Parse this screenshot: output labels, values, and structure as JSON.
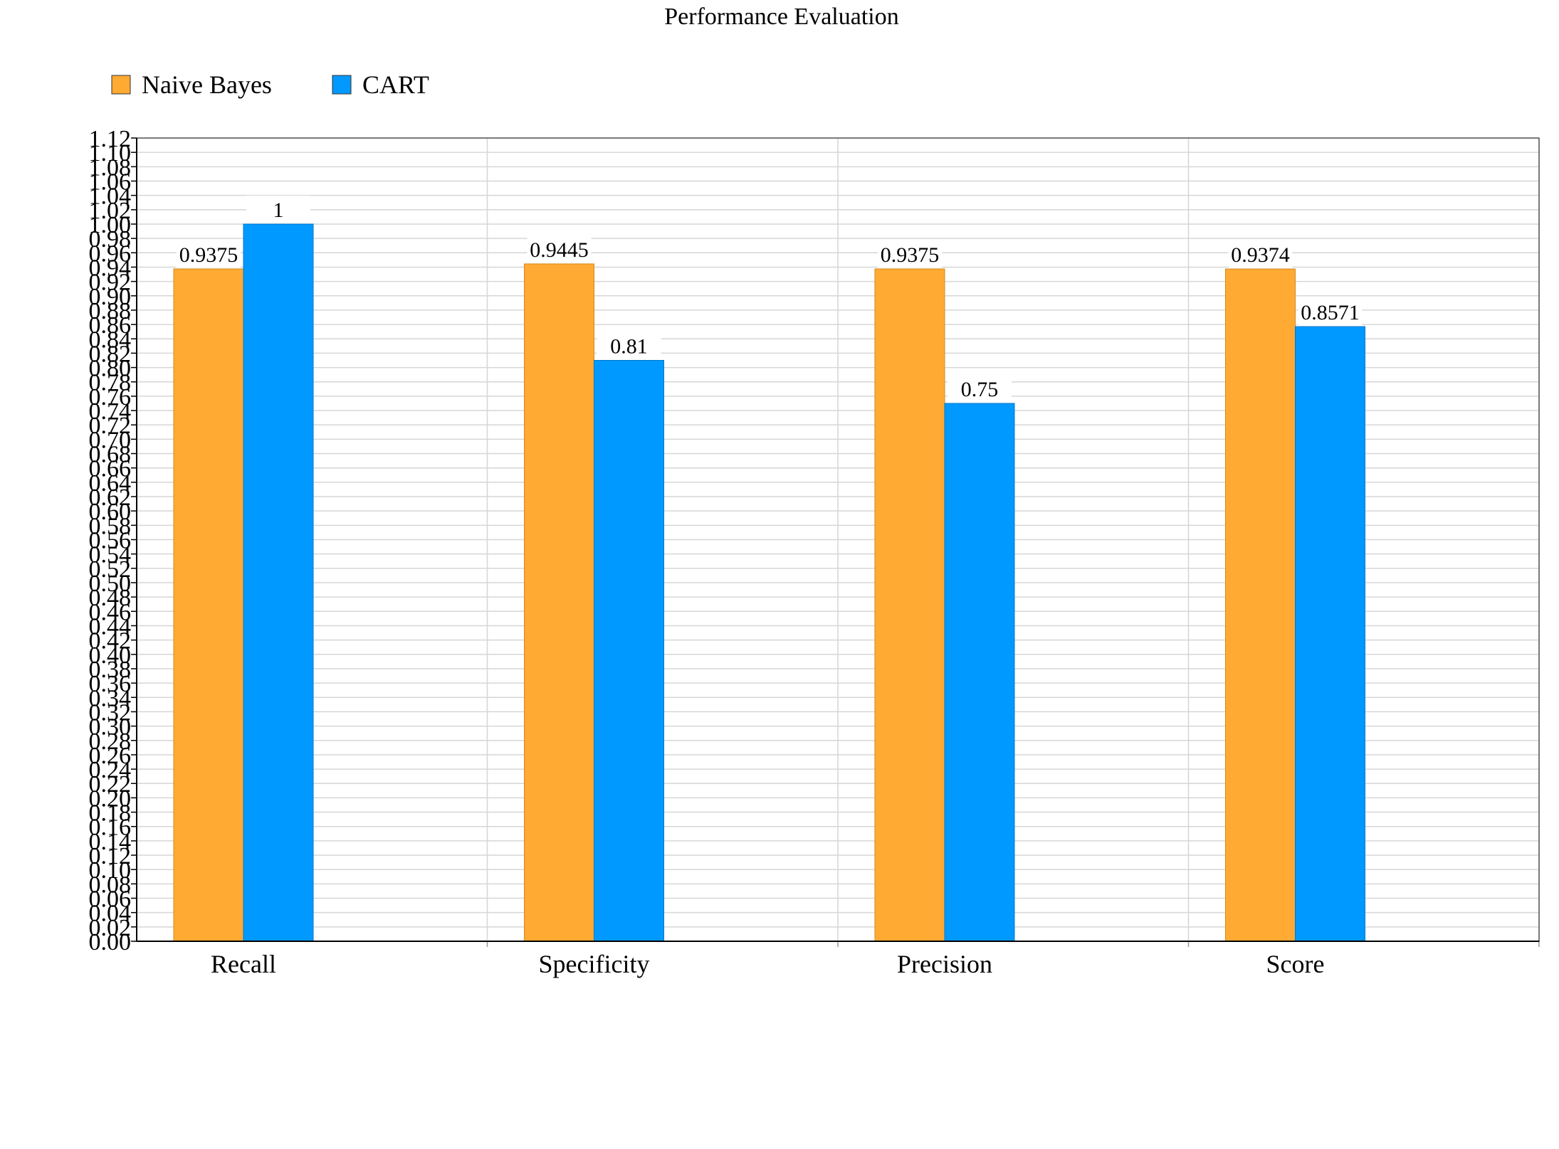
{
  "chart_data": {
    "type": "bar",
    "title": "Performance Evaluation",
    "categories": [
      "Recall",
      "Specificity",
      "Precision",
      "Score"
    ],
    "series": [
      {
        "name": "Naive Bayes",
        "color": "#FFAA33",
        "values": [
          0.9375,
          0.9445,
          0.9375,
          0.9374
        ],
        "labels": [
          "0.9375",
          "0.9445",
          "0.9375",
          "0.9374"
        ]
      },
      {
        "name": "CART",
        "color": "#0099FF",
        "values": [
          1,
          0.81,
          0.75,
          0.8571
        ],
        "labels": [
          "1",
          "0.81",
          "0.75",
          "0.8571"
        ]
      }
    ],
    "ylim": [
      0,
      1.12
    ],
    "ytick_step": 0.02,
    "grid": true,
    "legend": "top-left"
  }
}
